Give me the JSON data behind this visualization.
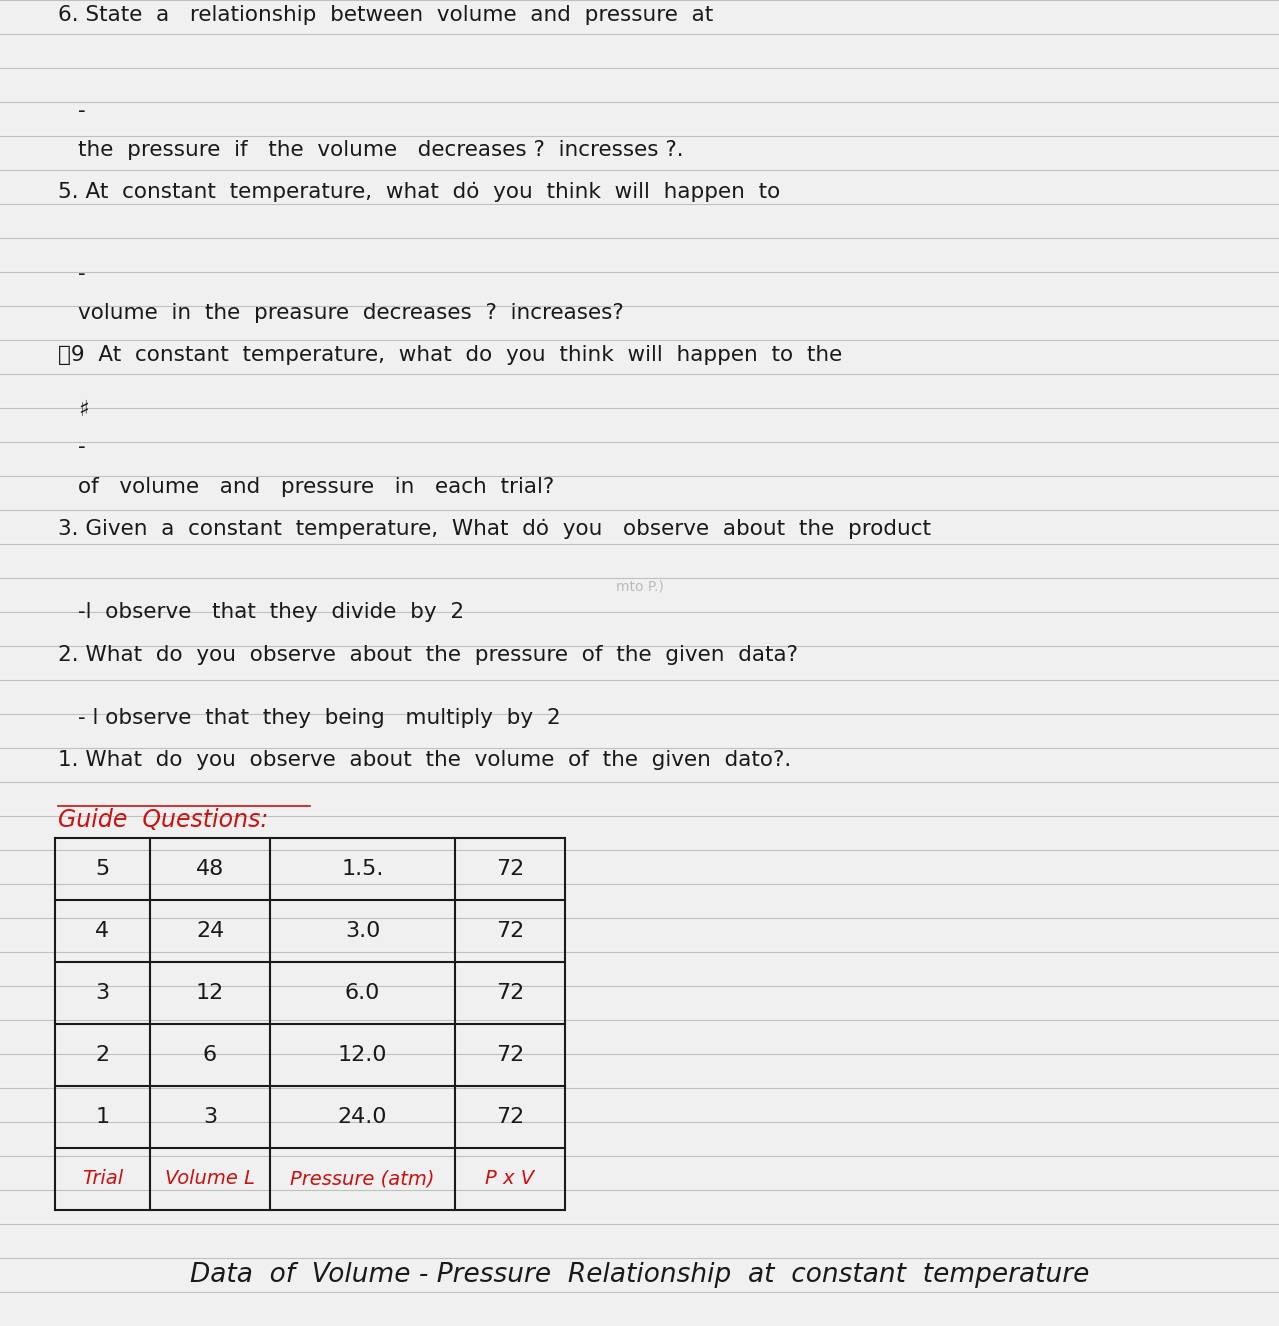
{
  "title": "Data  of  Volume - Pressure  Relationship  at  constant  temperature",
  "table_headers": [
    "Trial",
    "Volume L",
    "Pressure (atm)",
    "P x V"
  ],
  "table_data": [
    [
      "1",
      "3",
      "24.0",
      "72"
    ],
    [
      "2",
      "6",
      "12.0",
      "72"
    ],
    [
      "3",
      "12",
      "6.0",
      "72"
    ],
    [
      "4",
      "24",
      "3.0",
      "72"
    ],
    [
      "5",
      "48",
      "1.5.",
      "72"
    ]
  ],
  "bg_color": "#f0f0f0",
  "line_color": "#b0b8b0",
  "ink_color": "#1a1a1a",
  "red_color": "#cc1111",
  "pink_color": "#cc1111"
}
